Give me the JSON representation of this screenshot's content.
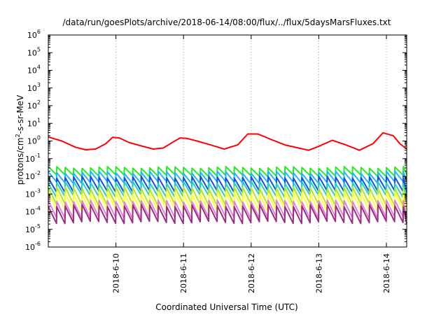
{
  "chart_data": {
    "type": "line",
    "title": "/data/run/goesPlots/archive/2018-06-14/08:00/flux/../flux/5daysMarsFluxes.txt",
    "xlabel": "Coordinated Universal Time (UTC)",
    "ylabel": {
      "pre": "protons/cm",
      "sup": "2",
      "post": "-s-sr-MeV"
    },
    "yscale": "log",
    "ylim": [
      1e-06,
      1000000.0
    ],
    "xlim": [
      0.0,
      5.3
    ],
    "x_ticks": [
      {
        "label": "2018-6-10",
        "x": 1.0
      },
      {
        "label": "2018-6-11",
        "x": 2.0
      },
      {
        "label": "2018-6-12",
        "x": 3.0
      },
      {
        "label": "2018-6-13",
        "x": 4.0
      },
      {
        "label": "2018-6-14",
        "x": 5.0
      }
    ],
    "y_ticks": [
      {
        "base": "10",
        "exp": "-6"
      },
      {
        "base": "10",
        "exp": "-5"
      },
      {
        "base": "10",
        "exp": "-4"
      },
      {
        "base": "10",
        "exp": "-3"
      },
      {
        "base": "10",
        "exp": "-2"
      },
      {
        "base": "10",
        "exp": "-1"
      },
      {
        "base": "10",
        "exp": "0"
      },
      {
        "base": "10",
        "exp": "1"
      },
      {
        "base": "10",
        "exp": "2"
      },
      {
        "base": "10",
        "exp": "3"
      },
      {
        "base": "10",
        "exp": "4"
      },
      {
        "base": "10",
        "exp": "5"
      },
      {
        "base": "10",
        "exp": "6"
      }
    ],
    "grid": true,
    "sawtooth_period_days": 0.125,
    "series": [
      {
        "color": "#ff0000",
        "kind": "envelope",
        "x": [
          0.0,
          0.2,
          0.4,
          0.55,
          0.7,
          0.85,
          0.95,
          1.05,
          1.2,
          1.4,
          1.55,
          1.7,
          1.85,
          1.95,
          2.05,
          2.2,
          2.4,
          2.6,
          2.8,
          2.95,
          3.1,
          3.3,
          3.5,
          3.7,
          3.85,
          4.0,
          4.2,
          4.4,
          4.6,
          4.8,
          4.95,
          5.1,
          5.2,
          5.3
        ],
        "y": [
          1.7,
          1.0,
          0.45,
          0.32,
          0.35,
          0.7,
          1.6,
          1.5,
          0.8,
          0.5,
          0.35,
          0.4,
          0.9,
          1.5,
          1.4,
          1.0,
          0.6,
          0.35,
          0.6,
          2.5,
          2.5,
          1.2,
          0.6,
          0.4,
          0.3,
          0.5,
          1.1,
          0.6,
          0.3,
          0.7,
          2.9,
          2.0,
          0.7,
          0.35
        ]
      },
      {
        "color": "#22ee22",
        "kind": "sawtooth",
        "peak": 0.032,
        "trough": 0.011,
        "wobble": 0.12
      },
      {
        "color": "#22b4ff",
        "kind": "sawtooth",
        "peak": 0.017,
        "trough": 0.0045,
        "wobble": 0.15
      },
      {
        "color": "#0d52e6",
        "kind": "sawtooth",
        "peak": 0.009,
        "trough": 0.0014,
        "wobble": 0.12
      },
      {
        "color": "#1fd3c3",
        "kind": "sawtooth",
        "peak": 0.0045,
        "trough": 0.00075,
        "wobble": 0.15
      },
      {
        "color": "#b3e61f",
        "kind": "sawtooth",
        "peak": 0.0022,
        "trough": 0.00025,
        "wobble": 0.12
      },
      {
        "color": "#ffff33",
        "kind": "sawtooth",
        "peak": 0.0011,
        "trough": 0.00012,
        "wobble": 0.15
      },
      {
        "color": "#e37fe3",
        "kind": "sawtooth",
        "peak": 0.0004,
        "trough": 4.5e-05,
        "wobble": 0.12
      },
      {
        "color": "#9b2f7c",
        "kind": "sawtooth",
        "peak": 0.00022,
        "trough": 2.5e-05,
        "wobble": 0.15
      }
    ]
  }
}
